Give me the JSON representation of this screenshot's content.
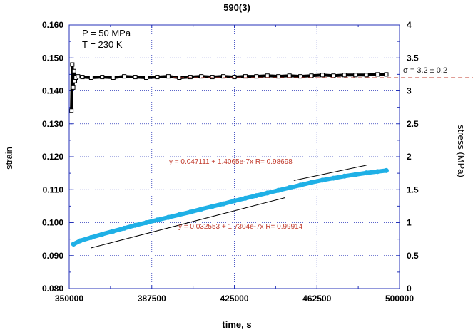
{
  "chart_data": {
    "type": "scatter",
    "title": "590(3)",
    "xlabel": "time, s",
    "ylabel": "strain",
    "y2label": "stress (MPa)",
    "xlim": [
      350000,
      500000
    ],
    "ylim": [
      0.08,
      0.16
    ],
    "y2lim": [
      0,
      4
    ],
    "xticks": [
      350000,
      387500,
      425000,
      462500,
      500000
    ],
    "yticks": [
      0.08,
      0.09,
      0.1,
      0.11,
      0.12,
      0.13,
      0.14,
      0.15,
      0.16
    ],
    "y2ticks": [
      0,
      0.5,
      1,
      1.5,
      2,
      2.5,
      3,
      3.5,
      4
    ],
    "xtick_labels": [
      "350000",
      "387500",
      "425000",
      "462500",
      "500000"
    ],
    "ytick_labels": [
      "0.080",
      "0.090",
      "0.100",
      "0.110",
      "0.120",
      "0.130",
      "0.140",
      "0.150",
      "0.160"
    ],
    "y2tick_labels": [
      "0",
      "0.5",
      "1",
      "1.5",
      "2",
      "2.5",
      "3",
      "3.5",
      "4"
    ],
    "grid": true,
    "conditions": [
      "P = 50 MPa",
      "T = 230 K"
    ],
    "series": [
      {
        "name": "stress",
        "axis": "right",
        "color": "#000000",
        "marker": "open-square",
        "x": [
          351000,
          351400,
          351800,
          352200,
          352600,
          353000,
          354000,
          356000,
          360000,
          365000,
          370000,
          375000,
          380000,
          385000,
          390000,
          395000,
          400000,
          405000,
          410000,
          415000,
          420000,
          425000,
          430000,
          435000,
          440000,
          445000,
          450000,
          455000,
          460000,
          465000,
          470000,
          475000,
          480000,
          485000,
          490000,
          494000
        ],
        "y": [
          2.7,
          3.4,
          3.05,
          3.3,
          3.15,
          3.2,
          3.22,
          3.21,
          3.2,
          3.21,
          3.2,
          3.22,
          3.21,
          3.2,
          3.21,
          3.22,
          3.2,
          3.21,
          3.22,
          3.21,
          3.22,
          3.21,
          3.22,
          3.22,
          3.23,
          3.22,
          3.23,
          3.22,
          3.23,
          3.24,
          3.23,
          3.24,
          3.24,
          3.24,
          3.25,
          3.25
        ]
      },
      {
        "name": "strain",
        "axis": "left",
        "color": "#1fb0e6",
        "marker": "filled-circle",
        "x": [
          352000,
          355000,
          360000,
          365000,
          370000,
          375000,
          380000,
          385000,
          390000,
          395000,
          400000,
          405000,
          410000,
          415000,
          420000,
          425000,
          430000,
          435000,
          440000,
          445000,
          450000,
          455000,
          460000,
          465000,
          470000,
          475000,
          480000,
          485000,
          490000,
          494000
        ],
        "y": [
          0.0935,
          0.0945,
          0.0955,
          0.0965,
          0.0974,
          0.0983,
          0.0992,
          0.1,
          0.1008,
          0.1016,
          0.1024,
          0.1032,
          0.1041,
          0.1049,
          0.1057,
          0.1066,
          0.1074,
          0.1082,
          0.109,
          0.1098,
          0.1106,
          0.1114,
          0.1122,
          0.1129,
          0.1135,
          0.1141,
          0.1146,
          0.1151,
          0.1155,
          0.1158
        ]
      }
    ],
    "fits": [
      {
        "label": "y = 0.047111 + 1.4065e-7x   R= 0.98698",
        "intercept": 0.047111,
        "slope": 1.4065e-07,
        "x_range": [
          452000,
          485000
        ],
        "color": "#000000"
      },
      {
        "label": "y = 0.032553 + 1.7304e-7x   R= 0.99914",
        "intercept": 0.032553,
        "slope": 1.7304e-07,
        "x_range": [
          360000,
          448000
        ],
        "color": "#000000"
      }
    ],
    "reference_line": {
      "label": "σ = 3.2 ± 0.2",
      "axis": "right",
      "value": 3.2,
      "color": "#c0392b",
      "style": "dashed"
    }
  }
}
